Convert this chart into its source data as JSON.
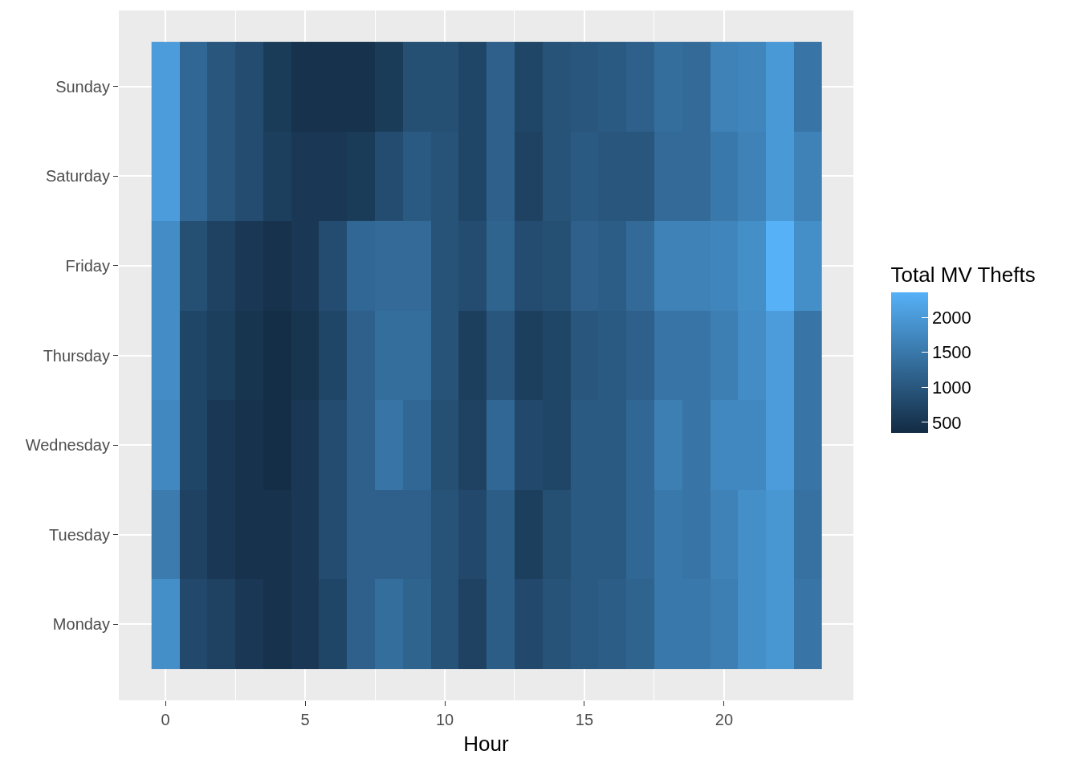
{
  "chart_data": {
    "type": "heatmap",
    "xlabel": "Hour",
    "clabel": "Total MV Thefts",
    "x": [
      0,
      1,
      2,
      3,
      4,
      5,
      6,
      7,
      8,
      9,
      10,
      11,
      12,
      13,
      14,
      15,
      16,
      17,
      18,
      19,
      20,
      21,
      22,
      23
    ],
    "y_categories": [
      "Sunday",
      "Saturday",
      "Friday",
      "Thursday",
      "Wednesday",
      "Tuesday",
      "Monday"
    ],
    "cells": [
      [
        2050,
        1250,
        1000,
        850,
        600,
        450,
        450,
        450,
        600,
        900,
        900,
        750,
        1150,
        750,
        950,
        1000,
        1050,
        1150,
        1350,
        1300,
        1650,
        1700,
        2000,
        1450
      ],
      [
        2050,
        1250,
        1000,
        850,
        650,
        550,
        550,
        600,
        850,
        1050,
        950,
        750,
        1150,
        700,
        950,
        1050,
        1000,
        1000,
        1300,
        1300,
        1500,
        1650,
        2000,
        1650
      ],
      [
        1800,
        900,
        700,
        550,
        450,
        550,
        850,
        1250,
        1300,
        1300,
        950,
        850,
        1200,
        850,
        900,
        1150,
        1100,
        1300,
        1650,
        1650,
        1700,
        1850,
        2360,
        1850
      ],
      [
        1800,
        750,
        650,
        500,
        400,
        500,
        750,
        1150,
        1350,
        1350,
        950,
        650,
        1000,
        650,
        750,
        1000,
        1050,
        1150,
        1450,
        1450,
        1600,
        1800,
        2050,
        1450
      ],
      [
        1750,
        750,
        550,
        450,
        400,
        550,
        850,
        1150,
        1450,
        1250,
        900,
        700,
        1250,
        800,
        750,
        1050,
        1050,
        1250,
        1600,
        1450,
        1750,
        1750,
        2050,
        1450
      ],
      [
        1550,
        700,
        550,
        450,
        450,
        550,
        850,
        1150,
        1150,
        1150,
        950,
        800,
        1100,
        650,
        900,
        1050,
        1050,
        1250,
        1500,
        1450,
        1650,
        1850,
        1950,
        1400
      ],
      [
        1850,
        800,
        700,
        550,
        450,
        550,
        750,
        1150,
        1350,
        1200,
        950,
        700,
        1100,
        800,
        950,
        1050,
        1100,
        1200,
        1500,
        1500,
        1600,
        1850,
        1950,
        1450
      ]
    ],
    "colors": [
      "#132b43",
      "#56b1f7"
    ],
    "clim": [
      350,
      2360
    ],
    "cticks": [
      500,
      1000,
      1500,
      2000
    ],
    "xlim": [
      -1.67,
      24.63
    ],
    "xticks": [
      0,
      5,
      10,
      15,
      20
    ],
    "grid": true
  }
}
